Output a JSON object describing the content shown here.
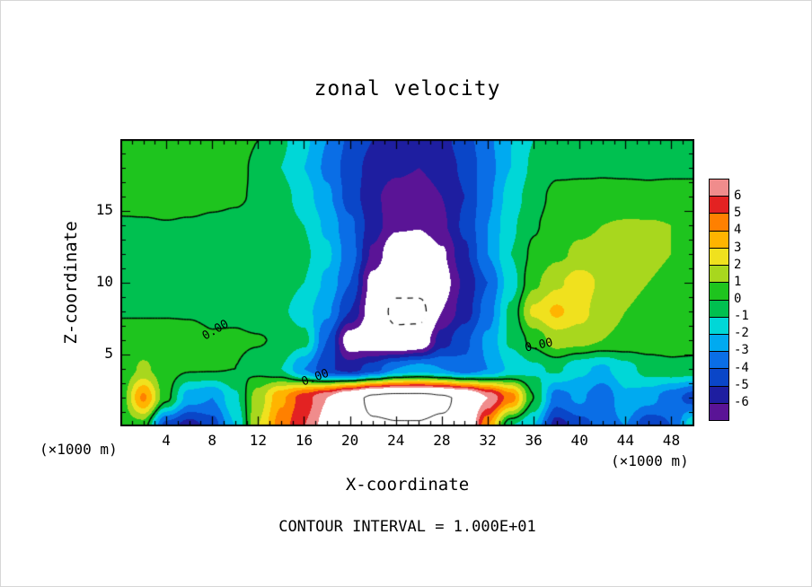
{
  "title": "zonal velocity",
  "axes": {
    "x": {
      "label": "X-coordinate",
      "unit": "(×1000 m)",
      "min": 0,
      "max": 50,
      "major_ticks": [
        4,
        8,
        12,
        16,
        20,
        24,
        28,
        32,
        36,
        40,
        44,
        48
      ],
      "minor_step": 1,
      "major_step": 4
    },
    "z": {
      "label": "Z-coordinate",
      "unit": "(×1000 m)",
      "min": 0,
      "max": 20,
      "major_ticks": [
        5,
        10,
        15
      ],
      "minor_step": 1,
      "major_step": 5
    }
  },
  "footer": {
    "text": "CONTOUR INTERVAL = 1.000E+01"
  },
  "colorbar": {
    "labels": [
      "6",
      "5",
      "4",
      "3",
      "2",
      "1",
      "0",
      "-1",
      "-2",
      "-3",
      "-4",
      "-5",
      "-6"
    ]
  },
  "chart_data": {
    "type": "heatmap",
    "title": "zonal velocity",
    "xlabel": "X-coordinate (×1000 m)",
    "ylabel": "Z-coordinate (×1000 m)",
    "x_range": [
      0,
      50
    ],
    "z_range": [
      0,
      20
    ],
    "x": [
      0,
      2,
      4,
      6,
      8,
      10,
      12,
      14,
      16,
      18,
      20,
      22,
      24,
      26,
      28,
      30,
      32,
      34,
      36,
      38,
      40,
      42,
      44,
      46,
      48,
      50
    ],
    "z": [
      20,
      18,
      16,
      14,
      12,
      10,
      8,
      6,
      4,
      2,
      0
    ],
    "values": [
      [
        0.5,
        0.5,
        0.6,
        0.6,
        0.5,
        0.4,
        0.0,
        -0.8,
        -1.8,
        -3.0,
        -4.2,
        -5.0,
        -5.5,
        -5.6,
        -5.3,
        -4.5,
        -3.2,
        -2.0,
        -1.0,
        -0.4,
        -0.2,
        -0.15,
        -0.1,
        -0.1,
        -0.1,
        -0.1
      ],
      [
        0.4,
        0.5,
        0.5,
        0.5,
        0.4,
        0.3,
        -0.2,
        -1.0,
        -2.0,
        -3.2,
        -4.5,
        -5.4,
        -5.8,
        -6.0,
        -5.6,
        -4.8,
        -3.4,
        -2.0,
        -0.8,
        -0.2,
        -0.15,
        -0.1,
        -0.1,
        -0.1,
        -0.1,
        -0.1
      ],
      [
        0.3,
        0.4,
        0.5,
        0.4,
        0.2,
        0.1,
        -0.1,
        -0.6,
        -1.5,
        -2.8,
        -4.4,
        -5.8,
        -6.5,
        -6.6,
        -6.0,
        -5.0,
        -3.2,
        -1.6,
        -0.4,
        0.3,
        0.3,
        0.25,
        0.2,
        0.15,
        0.2,
        0.2
      ],
      [
        -0.1,
        -0.1,
        -0.05,
        -0.1,
        -0.15,
        -0.2,
        -0.3,
        -0.5,
        -1.0,
        -2.2,
        -3.8,
        -5.5,
        -6.8,
        -6.9,
        -6.2,
        -4.8,
        -3.0,
        -1.2,
        -0.1,
        0.5,
        0.8,
        1.0,
        1.1,
        1.1,
        1.0,
        0.9
      ],
      [
        -0.1,
        -0.1,
        -0.1,
        -0.1,
        -0.15,
        -0.2,
        -0.25,
        -0.4,
        -0.8,
        -1.8,
        -3.5,
        -6.2,
        -8.2,
        -8.4,
        -7.2,
        -5.2,
        -3.0,
        -1.0,
        0.2,
        0.8,
        1.2,
        1.3,
        1.2,
        1.1,
        1.0,
        0.9
      ],
      [
        -0.05,
        -0.1,
        -0.1,
        -0.1,
        -0.15,
        -0.15,
        -0.2,
        -0.5,
        -1.0,
        -2.2,
        -4.0,
        -7.5,
        -9.0,
        -8.8,
        -7.6,
        -5.8,
        -4.0,
        -1.5,
        0.8,
        1.8,
        2.6,
        1.8,
        1.2,
        1.0,
        0.9,
        0.8
      ],
      [
        -0.05,
        -0.05,
        -0.05,
        -0.05,
        -0.1,
        -0.15,
        -0.35,
        -0.8,
        -1.6,
        -2.8,
        -5.0,
        -7.8,
        -10.8,
        -11.0,
        -7.0,
        -5.5,
        -3.5,
        -0.8,
        2.2,
        3.2,
        2.4,
        1.4,
        1.0,
        0.8,
        0.7,
        0.7
      ],
      [
        0.3,
        0.3,
        0.3,
        0.2,
        0.05,
        0.1,
        0.05,
        -0.1,
        -0.6,
        -4.0,
        -7.8,
        -8.2,
        -9.0,
        -8.5,
        -5.5,
        -4.2,
        -2.8,
        -0.8,
        0.3,
        1.5,
        1.4,
        1.0,
        0.8,
        0.6,
        0.5,
        0.5
      ],
      [
        0.2,
        1.2,
        0.4,
        0.1,
        0.1,
        0.0,
        -0.3,
        -1.0,
        -3.0,
        -4.8,
        -5.5,
        -4.5,
        -3.0,
        -2.5,
        -3.0,
        -3.8,
        -3.0,
        -1.8,
        -1.2,
        -0.8,
        -1.8,
        -2.2,
        -1.4,
        -0.6,
        -0.3,
        -0.4
      ],
      [
        0.3,
        4.2,
        0.3,
        -2.5,
        -3.0,
        -1.2,
        1.5,
        3.8,
        5.5,
        7.0,
        9.0,
        10.5,
        10.8,
        10.8,
        10.4,
        9.4,
        7.0,
        4.5,
        0.0,
        -3.5,
        -2.8,
        -3.8,
        -2.2,
        -2.6,
        -3.6,
        -4.5
      ],
      [
        0.4,
        0.5,
        -4.5,
        -5.5,
        -4.5,
        -2.0,
        2.0,
        4.5,
        6.0,
        7.5,
        9.3,
        9.8,
        9.9,
        9.9,
        9.7,
        9.5,
        4.0,
        -1.0,
        -2.0,
        -5.5,
        -4.5,
        -3.5,
        -3.0,
        -4.8,
        -4.0,
        -1.0
      ]
    ],
    "contour_interval": 10,
    "contour_interval_text": "1.000E+01",
    "contour_levels": [
      -10,
      0,
      10
    ],
    "contour_labels": [
      {
        "text": "0.00",
        "x": 8.3,
        "z": 6.7,
        "angle": -30
      },
      {
        "text": "0.00",
        "x": 17.0,
        "z": 3.4,
        "angle": -20
      },
      {
        "text": "0.00",
        "x": 36.5,
        "z": 5.6,
        "angle": -12
      }
    ],
    "palette": {
      "levels": [
        -7,
        -6,
        -5,
        -4,
        -3,
        -2,
        -1,
        0,
        1,
        2,
        3,
        4,
        5,
        6,
        7
      ],
      "colors": [
        "#5a1496",
        "#1e1ea0",
        "#0a46c8",
        "#0a6ee6",
        "#00aaf0",
        "#00d7d7",
        "#00c050",
        "#1ec41e",
        "#a8d71e",
        "#f0e11e",
        "#ffb400",
        "#ff8000",
        "#e32222",
        "#f08c8c"
      ],
      "out_of_range": "#ffffff"
    }
  }
}
